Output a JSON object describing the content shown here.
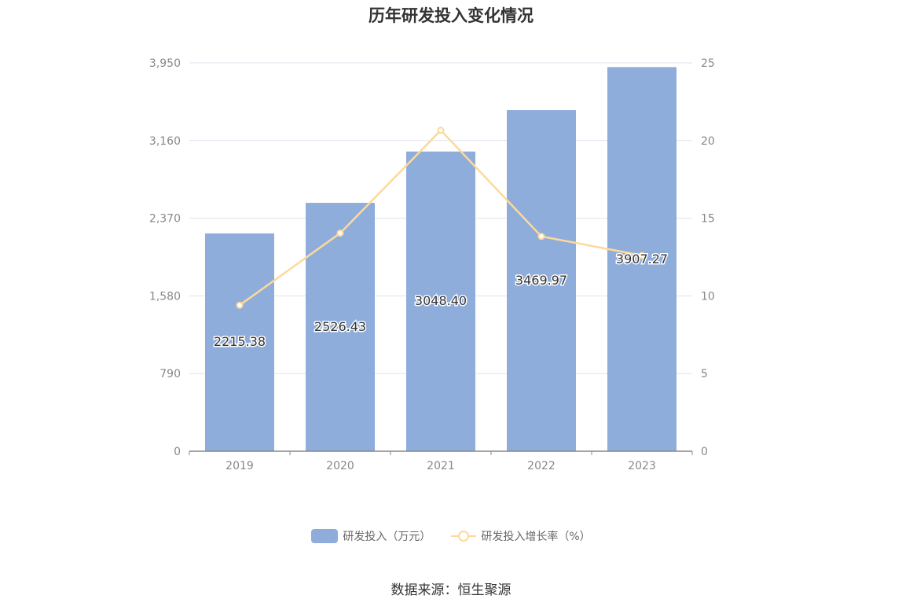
{
  "title": "历年研发投入变化情况",
  "source": "数据来源：恒生聚源",
  "colors": {
    "bar": "#8eaddb",
    "line": "#fdd99a",
    "grid": "#e0e3ee",
    "axis": "#888888",
    "tick_text": "#888888"
  },
  "chart_data": {
    "type": "bar",
    "categories": [
      "2019",
      "2020",
      "2021",
      "2022",
      "2023"
    ],
    "series": [
      {
        "name": "研发投入（万元）",
        "type": "bar",
        "axis": "left",
        "values": [
          2215.38,
          2526.43,
          3048.4,
          3469.97,
          3907.27
        ],
        "labels": [
          "2215.38",
          "2526.43",
          "3048.40",
          "3469.97",
          "3907.27"
        ]
      },
      {
        "name": "研发投入增长率（%）",
        "type": "line",
        "axis": "right",
        "values": [
          9.4,
          14.04,
          20.66,
          13.83,
          12.6
        ]
      }
    ],
    "y_left": {
      "ylim": [
        0,
        3950
      ],
      "ticks": [
        "0",
        "790",
        "1,580",
        "2,370",
        "3,160",
        "3,950"
      ]
    },
    "y_right": {
      "ylim": [
        0,
        25
      ],
      "ticks": [
        "0",
        "5",
        "10",
        "15",
        "20",
        "25"
      ]
    },
    "grid": true,
    "legend_position": "bottom"
  }
}
